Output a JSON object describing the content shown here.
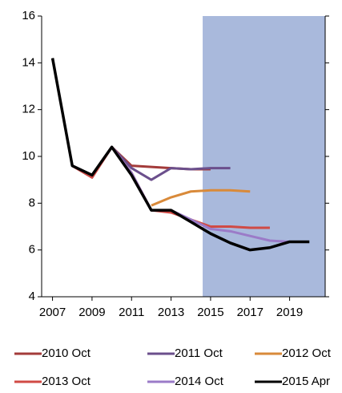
{
  "chart_data": {
    "type": "line",
    "x": [
      2007,
      2008,
      2009,
      2010,
      2011,
      2012,
      2013,
      2014,
      2015,
      2016,
      2017,
      2018,
      2019,
      2020
    ],
    "series": [
      {
        "name": "2010 Oct",
        "color": "#a33b3a",
        "values": [
          null,
          9.6,
          9.1,
          10.4,
          9.6,
          9.55,
          9.5,
          9.45,
          9.45,
          null,
          null,
          null,
          null,
          null
        ]
      },
      {
        "name": "2011 Oct",
        "color": "#6b4f8c",
        "values": [
          null,
          9.6,
          9.2,
          10.4,
          9.5,
          9.0,
          9.5,
          9.45,
          9.5,
          9.5,
          null,
          null,
          null,
          null
        ]
      },
      {
        "name": "2012 Oct",
        "color": "#d98a3a",
        "values": [
          null,
          null,
          null,
          null,
          null,
          7.9,
          8.25,
          8.5,
          8.55,
          8.55,
          8.5,
          null,
          null,
          null
        ]
      },
      {
        "name": "2013 Oct",
        "color": "#d04a45",
        "values": [
          null,
          9.6,
          9.1,
          10.4,
          9.3,
          7.7,
          7.6,
          7.3,
          7.0,
          7.0,
          6.95,
          6.95,
          null,
          null
        ]
      },
      {
        "name": "2014 Oct",
        "color": "#9b7bc8",
        "values": [
          null,
          9.6,
          9.2,
          10.4,
          9.3,
          7.7,
          7.7,
          7.3,
          6.9,
          6.8,
          6.6,
          6.4,
          6.35,
          null
        ]
      },
      {
        "name": "2015 Apr",
        "color": "#000000",
        "values": [
          14.2,
          9.6,
          9.2,
          10.4,
          9.2,
          7.7,
          7.7,
          7.2,
          6.7,
          6.3,
          6.0,
          6.1,
          6.35,
          6.35
        ]
      }
    ],
    "xlim": [
      2006.45,
      2020.8
    ],
    "xticks": [
      2007,
      2009,
      2011,
      2013,
      2015,
      2017,
      2019
    ],
    "ylim": [
      4,
      16
    ],
    "yticks": [
      4,
      6,
      8,
      10,
      12,
      14,
      16
    ],
    "shaded_region": {
      "x": [
        2014.6,
        2020.8
      ],
      "color": "#a9b9dc"
    },
    "legend": "bottom"
  }
}
